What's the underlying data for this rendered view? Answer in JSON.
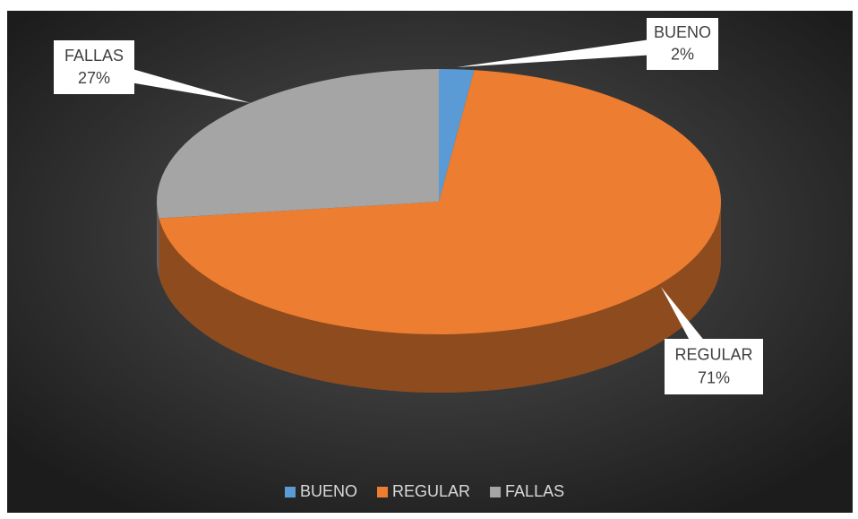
{
  "chart_data": {
    "type": "pie3d",
    "categories": [
      "BUENO",
      "REGULAR",
      "FALLAS"
    ],
    "values": [
      2,
      71,
      27
    ],
    "value_labels": [
      "2%",
      "71%",
      "27%"
    ],
    "colors": [
      "#5b9bd5",
      "#ed7d31",
      "#a5a5a5"
    ],
    "legend": "bottom"
  }
}
